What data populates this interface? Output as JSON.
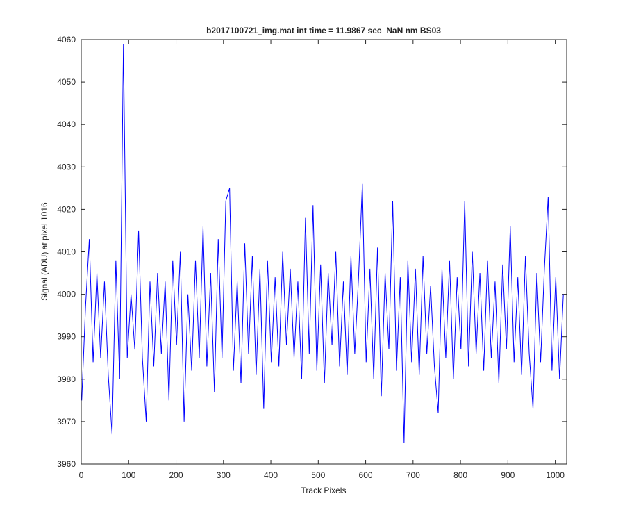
{
  "chart_data": {
    "type": "line",
    "title": "b2017100721_img.mat int time = 11.9867 sec  NaN nm BS03",
    "x_label": "Track Pixels",
    "y_label": "Signal (ADU) at pixel 1016",
    "x": [
      1,
      9,
      17,
      25,
      33,
      41,
      49,
      57,
      65,
      73,
      81,
      89,
      97,
      105,
      113,
      121,
      129,
      137,
      145,
      153,
      161,
      169,
      177,
      185,
      193,
      201,
      209,
      217,
      225,
      233,
      241,
      249,
      257,
      265,
      273,
      281,
      289,
      297,
      305,
      313,
      321,
      329,
      337,
      345,
      353,
      361,
      369,
      377,
      385,
      393,
      401,
      409,
      417,
      425,
      433,
      441,
      449,
      457,
      465,
      473,
      481,
      489,
      497,
      505,
      513,
      521,
      529,
      537,
      545,
      553,
      561,
      569,
      577,
      585,
      593,
      601,
      609,
      617,
      625,
      633,
      641,
      649,
      657,
      665,
      673,
      681,
      689,
      697,
      705,
      713,
      721,
      729,
      737,
      745,
      753,
      761,
      769,
      777,
      785,
      793,
      801,
      809,
      817,
      825,
      833,
      841,
      849,
      857,
      865,
      873,
      881,
      889,
      897,
      905,
      913,
      921,
      929,
      937,
      945,
      953,
      961,
      969,
      977,
      985,
      993,
      1001,
      1009,
      1017
    ],
    "series": [
      {
        "color": "#0000ff",
        "values": [
          3975,
          3997,
          4013,
          3984,
          4005,
          3985,
          4003,
          3981,
          3967,
          4008,
          3980,
          4059,
          3985,
          4000,
          3987,
          4015,
          3985,
          3970,
          4003,
          3983,
          4005,
          3986,
          4003,
          3975,
          4008,
          3988,
          4010,
          3970,
          4000,
          3982,
          4008,
          3985,
          4016,
          3983,
          4005,
          3977,
          4013,
          3985,
          4022,
          4025,
          3982,
          4003,
          3979,
          4012,
          3986,
          4009,
          3981,
          4006,
          3973,
          4008,
          3984,
          4004,
          3983,
          4010,
          3988,
          4006,
          3985,
          4003,
          3980,
          4018,
          3986,
          4021,
          3982,
          4007,
          3979,
          4005,
          3988,
          4010,
          3983,
          4003,
          3981,
          4009,
          3986,
          4004,
          4026,
          3984,
          4006,
          3980,
          4011,
          3976,
          4005,
          3987,
          4022,
          3982,
          4004,
          3965,
          4008,
          3984,
          4006,
          3981,
          4009,
          3986,
          4002,
          3983,
          3972,
          4006,
          3985,
          4008,
          3980,
          4004,
          3987,
          4022,
          3983,
          4010,
          3986,
          4005,
          3982,
          4008,
          3985,
          4003,
          3979,
          4007,
          3987,
          4016,
          3984,
          4004,
          3981,
          4009,
          3986,
          3973,
          4005,
          3984,
          4006,
          4023,
          3982,
          4004,
          3980,
          4000
        ]
      }
    ],
    "xlim": [
      0,
      1024
    ],
    "ylim": [
      3960,
      4060
    ],
    "xticks": [
      0,
      100,
      200,
      300,
      400,
      500,
      600,
      700,
      800,
      900,
      1000
    ],
    "yticks": [
      3960,
      3970,
      3980,
      3990,
      4000,
      4010,
      4020,
      4030,
      4040,
      4050,
      4060
    ]
  }
}
